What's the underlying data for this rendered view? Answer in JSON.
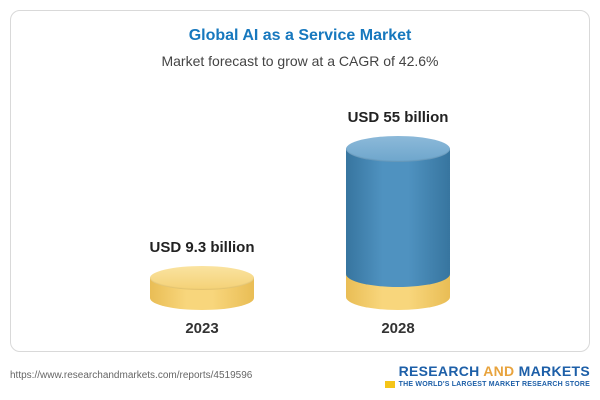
{
  "chart": {
    "title": "Global AI as a Service Market",
    "subtitle": "Market forecast to grow at a CAGR of 42.6%"
  },
  "chart_data": {
    "type": "bar",
    "categories": [
      "2023",
      "2028"
    ],
    "values": [
      9.3,
      55
    ],
    "unit": "USD billion",
    "value_labels": [
      "USD 9.3 billion",
      "USD 55 billion"
    ],
    "title": "Global AI as a Service Market",
    "subtitle": "Market forecast to grow at a CAGR of 42.6%",
    "bar_style": "3d-cylinder",
    "colors": {
      "bar_2023": "#f6cf6b",
      "bar_2028": "#4789b8",
      "bar_2028_base": "#f6cf6b",
      "title": "#1778be"
    },
    "legend": "none",
    "grid": false
  },
  "footer": {
    "url": "https://www.researchandmarkets.com/reports/4519596",
    "logo": {
      "word1": "RESEARCH",
      "word2": "AND",
      "word3": "MARKETS",
      "tagline": "THE WORLD'S LARGEST MARKET RESEARCH STORE"
    }
  }
}
